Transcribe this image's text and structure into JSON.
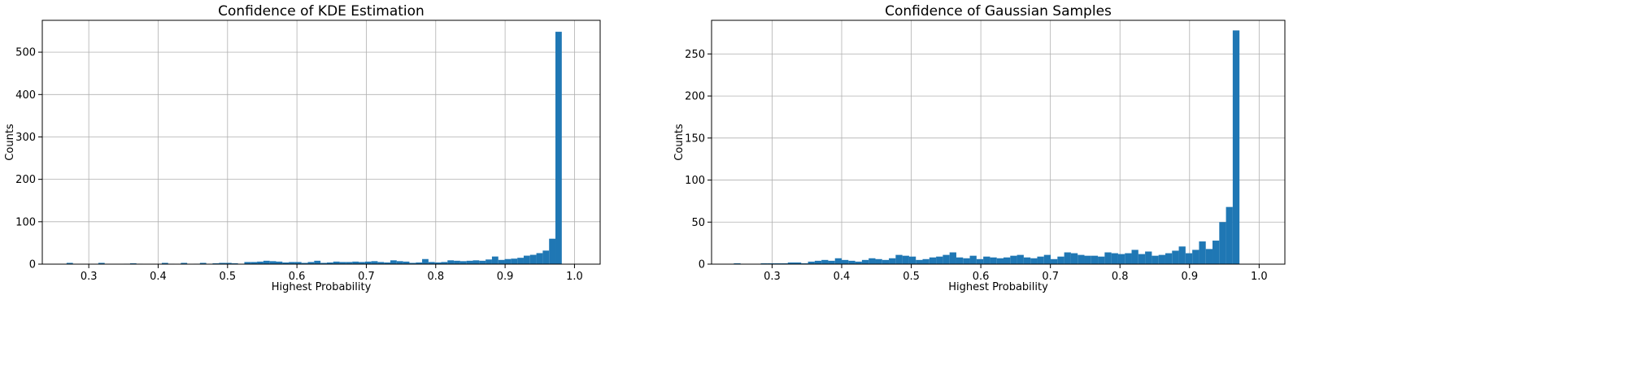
{
  "chart_data": [
    {
      "type": "bar",
      "title": "Confidence of KDE Estimation",
      "xlabel": "Highest Probability",
      "ylabel": "Counts",
      "xlim": [
        0.233,
        1.037
      ],
      "ylim": [
        0,
        575
      ],
      "xticks": [
        "0.3",
        "0.4",
        "0.5",
        "0.6",
        "0.7",
        "0.8",
        "0.9",
        "1.0"
      ],
      "xtick_values": [
        0.3,
        0.4,
        0.5,
        0.6,
        0.7,
        0.8,
        0.9,
        1.0
      ],
      "yticks": [
        "0",
        "100",
        "200",
        "300",
        "400",
        "500"
      ],
      "ytick_values": [
        0,
        100,
        200,
        300,
        400,
        500
      ],
      "grid": true,
      "bin_start": 0.268,
      "bin_width": 0.00915,
      "values": [
        3,
        0,
        0,
        0,
        0,
        3,
        0,
        0,
        0,
        1,
        2,
        1,
        0,
        0,
        0,
        3,
        1,
        0,
        3,
        0,
        1,
        3,
        0,
        2,
        3,
        3,
        2,
        0,
        5,
        5,
        6,
        8,
        7,
        6,
        4,
        5,
        5,
        3,
        5,
        8,
        3,
        4,
        6,
        5,
        5,
        6,
        5,
        6,
        7,
        5,
        4,
        9,
        7,
        6,
        3,
        4,
        12,
        5,
        4,
        5,
        9,
        8,
        7,
        8,
        9,
        8,
        11,
        18,
        10,
        12,
        13,
        15,
        20,
        22,
        26,
        32,
        60,
        548
      ],
      "color": "#1f77b4"
    },
    {
      "type": "bar",
      "title": "Confidence of Gaussian Samples",
      "xlabel": "Highest Probability",
      "ylabel": "Counts",
      "xlim": [
        0.213,
        1.037
      ],
      "ylim": [
        0,
        290
      ],
      "xticks": [
        "0.3",
        "0.4",
        "0.5",
        "0.6",
        "0.7",
        "0.8",
        "0.9",
        "1.0"
      ],
      "xtick_values": [
        0.3,
        0.4,
        0.5,
        0.6,
        0.7,
        0.8,
        0.9,
        1.0
      ],
      "yticks": [
        "0",
        "50",
        "100",
        "150",
        "200",
        "250"
      ],
      "ytick_values": [
        0,
        50,
        100,
        150,
        200,
        250
      ],
      "grid": true,
      "bin_start": 0.245,
      "bin_width": 0.00969,
      "values": [
        1,
        0,
        0,
        0,
        1,
        1,
        1,
        1,
        2,
        2,
        1,
        3,
        4,
        5,
        4,
        7,
        5,
        4,
        3,
        5,
        7,
        6,
        5,
        7,
        11,
        10,
        9,
        5,
        6,
        8,
        9,
        11,
        14,
        8,
        7,
        10,
        6,
        9,
        8,
        7,
        8,
        10,
        11,
        8,
        7,
        9,
        11,
        6,
        9,
        14,
        13,
        11,
        10,
        10,
        9,
        14,
        13,
        12,
        13,
        17,
        12,
        15,
        10,
        11,
        13,
        16,
        21,
        13,
        17,
        27,
        18,
        28,
        50,
        68,
        278
      ],
      "color": "#1f77b4"
    }
  ]
}
